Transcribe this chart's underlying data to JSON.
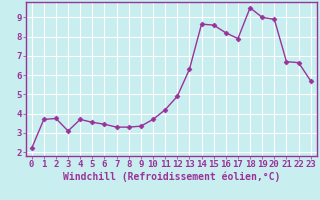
{
  "x": [
    0,
    1,
    2,
    3,
    4,
    5,
    6,
    7,
    8,
    9,
    10,
    11,
    12,
    13,
    14,
    15,
    16,
    17,
    18,
    19,
    20,
    21,
    22,
    23
  ],
  "y": [
    2.2,
    3.7,
    3.75,
    3.1,
    3.7,
    3.55,
    3.45,
    3.3,
    3.3,
    3.35,
    3.7,
    4.2,
    4.9,
    6.3,
    8.65,
    8.6,
    8.2,
    7.9,
    9.5,
    9.0,
    8.9,
    6.7,
    6.65,
    5.7
  ],
  "line_color": "#993399",
  "marker": "D",
  "marker_size": 2.5,
  "bg_color": "#c8eef0",
  "grid_color": "#aacccc",
  "xlabel": "Windchill (Refroidissement éolien,°C)",
  "xlim": [
    -0.5,
    23.5
  ],
  "ylim": [
    1.8,
    9.8
  ],
  "yticks": [
    2,
    3,
    4,
    5,
    6,
    7,
    8,
    9
  ],
  "xticks": [
    0,
    1,
    2,
    3,
    4,
    5,
    6,
    7,
    8,
    9,
    10,
    11,
    12,
    13,
    14,
    15,
    16,
    17,
    18,
    19,
    20,
    21,
    22,
    23
  ],
  "tick_color": "#993399",
  "label_color": "#993399",
  "font_size_xlabel": 7.0,
  "font_size_tick": 6.5,
  "spine_color": "#993399",
  "line_width": 1.0
}
